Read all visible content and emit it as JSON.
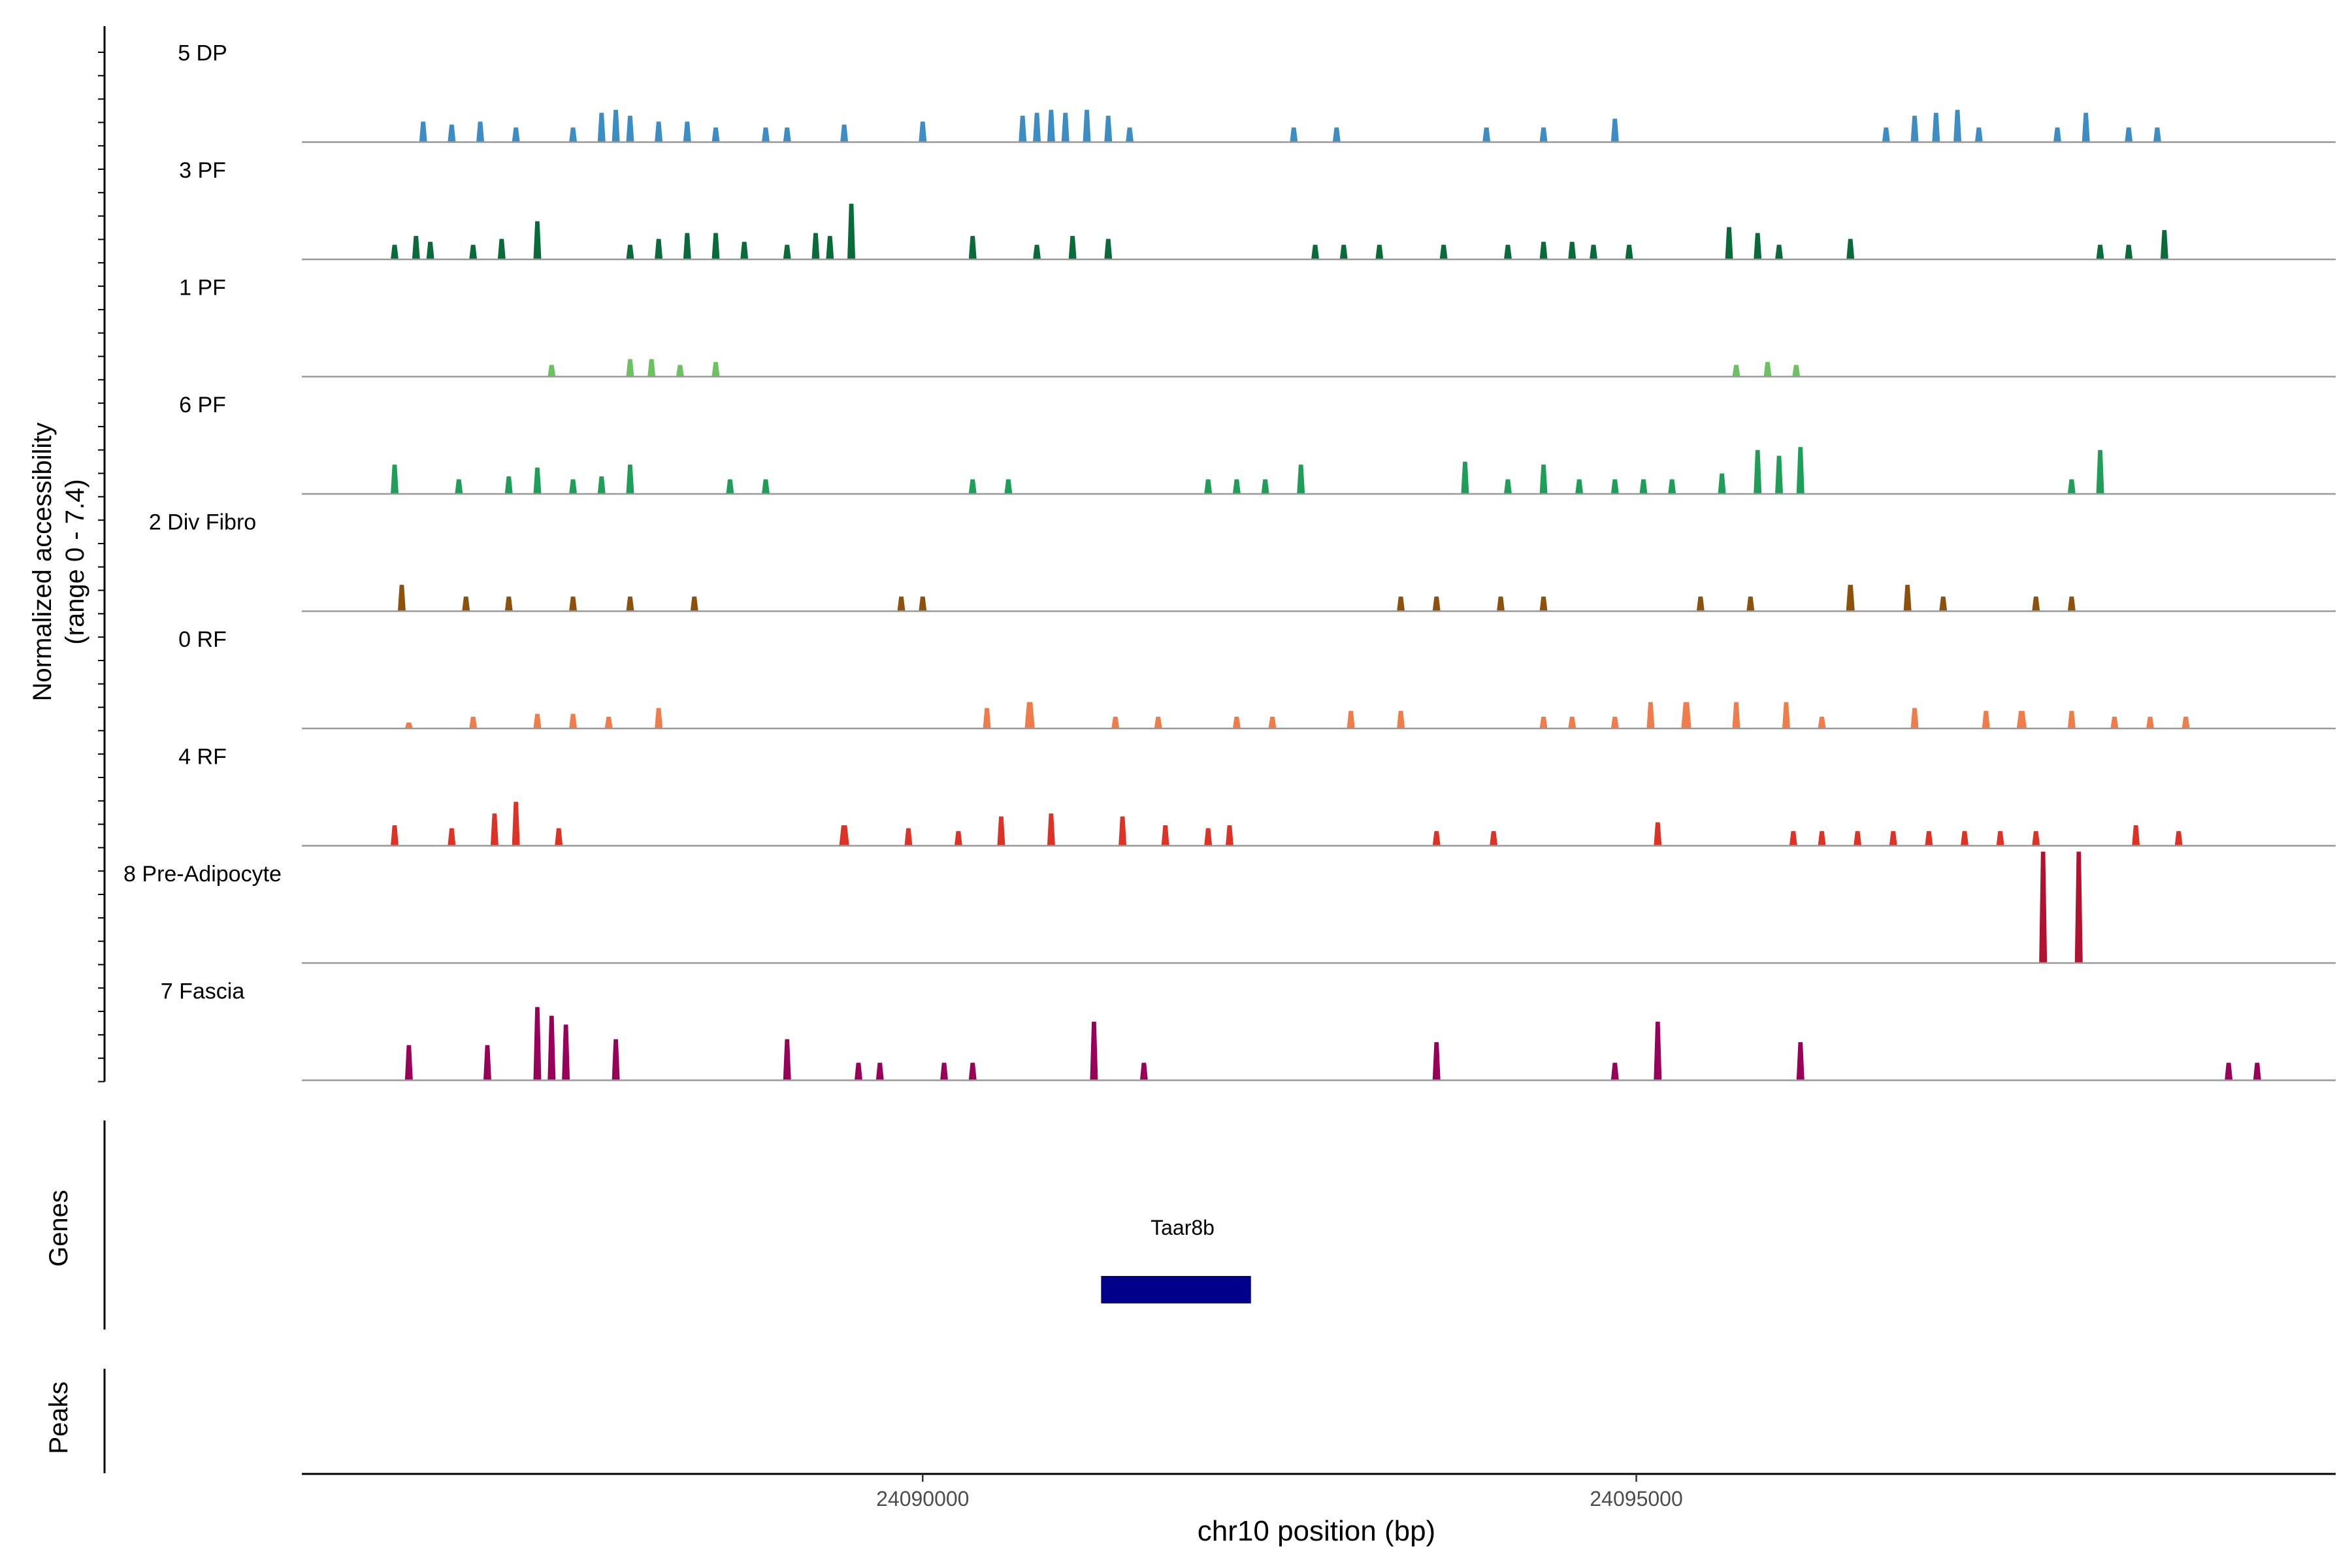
{
  "chart_data": {
    "type": "area",
    "title": "",
    "xlabel": "chr10 position (bp)",
    "ylabel_line1": "Normalized accessibility",
    "ylabel_line2": "(range 0 - 7.4)",
    "ylim": [
      0,
      7.4
    ],
    "xlim": [
      24085650,
      24099900
    ],
    "x_ticks": [
      24090000,
      24095000
    ],
    "x_tick_labels": [
      "24090000",
      "24095000"
    ],
    "tracks": [
      {
        "name": "5 DP",
        "color": "#3C8DC4",
        "peaks": [
          [
            24086500,
            40,
            0.35
          ],
          [
            24086700,
            40,
            0.3
          ],
          [
            24086900,
            55,
            0.35
          ],
          [
            24087150,
            30,
            0.25
          ],
          [
            24087550,
            25,
            0.25
          ],
          [
            24087750,
            30,
            0.5
          ],
          [
            24087850,
            30,
            0.55
          ],
          [
            24087950,
            30,
            0.45
          ],
          [
            24088150,
            30,
            0.35
          ],
          [
            24088350,
            30,
            0.35
          ],
          [
            24088550,
            25,
            0.25
          ],
          [
            24088900,
            25,
            0.25
          ],
          [
            24089050,
            25,
            0.25
          ],
          [
            24089450,
            25,
            0.3
          ],
          [
            24090000,
            25,
            0.35
          ],
          [
            24090700,
            30,
            0.45
          ],
          [
            24090800,
            30,
            0.5
          ],
          [
            24090900,
            30,
            0.55
          ],
          [
            24091000,
            30,
            0.5
          ],
          [
            24091150,
            30,
            0.55
          ],
          [
            24091300,
            25,
            0.45
          ],
          [
            24091450,
            20,
            0.25
          ],
          [
            24092600,
            40,
            0.25
          ],
          [
            24092900,
            30,
            0.25
          ],
          [
            24093950,
            25,
            0.25
          ],
          [
            24094350,
            30,
            0.25
          ],
          [
            24094850,
            40,
            0.4
          ],
          [
            24096750,
            25,
            0.25
          ],
          [
            24096950,
            40,
            0.45
          ],
          [
            24097100,
            35,
            0.5
          ],
          [
            24097250,
            40,
            0.55
          ],
          [
            24097400,
            25,
            0.25
          ],
          [
            24097950,
            30,
            0.25
          ],
          [
            24098150,
            40,
            0.5
          ],
          [
            24098450,
            25,
            0.25
          ],
          [
            24098650,
            25,
            0.25
          ]
        ]
      },
      {
        "name": "3 PF",
        "color": "#0A6B3A",
        "peaks": [
          [
            24086300,
            30,
            0.25
          ],
          [
            24086450,
            30,
            0.4
          ],
          [
            24086550,
            25,
            0.3
          ],
          [
            24086850,
            25,
            0.25
          ],
          [
            24087050,
            30,
            0.35
          ],
          [
            24087300,
            50,
            0.65
          ],
          [
            24087950,
            25,
            0.25
          ],
          [
            24088150,
            30,
            0.35
          ],
          [
            24088350,
            35,
            0.45
          ],
          [
            24088550,
            35,
            0.45
          ],
          [
            24088750,
            25,
            0.3
          ],
          [
            24089050,
            25,
            0.25
          ],
          [
            24089250,
            40,
            0.45
          ],
          [
            24089350,
            35,
            0.4
          ],
          [
            24089500,
            50,
            0.95
          ],
          [
            24090350,
            40,
            0.4
          ],
          [
            24090800,
            25,
            0.25
          ],
          [
            24091050,
            25,
            0.4
          ],
          [
            24091300,
            25,
            0.35
          ],
          [
            24092750,
            25,
            0.25
          ],
          [
            24092950,
            25,
            0.25
          ],
          [
            24093200,
            25,
            0.25
          ],
          [
            24093650,
            25,
            0.25
          ],
          [
            24094100,
            25,
            0.25
          ],
          [
            24094350,
            30,
            0.3
          ],
          [
            24094550,
            30,
            0.3
          ],
          [
            24094700,
            25,
            0.25
          ],
          [
            24094950,
            25,
            0.25
          ],
          [
            24095650,
            50,
            0.55
          ],
          [
            24095850,
            40,
            0.45
          ],
          [
            24096000,
            25,
            0.25
          ],
          [
            24096500,
            30,
            0.35
          ],
          [
            24098250,
            25,
            0.25
          ],
          [
            24098450,
            25,
            0.25
          ],
          [
            24098700,
            40,
            0.5
          ]
        ]
      },
      {
        "name": "1 PF",
        "color": "#6CC163",
        "peaks": [
          [
            24087400,
            25,
            0.2
          ],
          [
            24087950,
            35,
            0.3
          ],
          [
            24088100,
            35,
            0.3
          ],
          [
            24088300,
            25,
            0.2
          ],
          [
            24088550,
            30,
            0.25
          ],
          [
            24095700,
            25,
            0.2
          ],
          [
            24095920,
            30,
            0.25
          ],
          [
            24096120,
            25,
            0.2
          ]
        ]
      },
      {
        "name": "6 PF",
        "color": "#1F9E5A",
        "peaks": [
          [
            24086300,
            35,
            0.5
          ],
          [
            24086750,
            25,
            0.25
          ],
          [
            24087100,
            35,
            0.3
          ],
          [
            24087300,
            35,
            0.45
          ],
          [
            24087550,
            25,
            0.25
          ],
          [
            24087750,
            30,
            0.3
          ],
          [
            24087950,
            40,
            0.5
          ],
          [
            24088650,
            25,
            0.25
          ],
          [
            24088900,
            25,
            0.25
          ],
          [
            24090350,
            25,
            0.25
          ],
          [
            24090600,
            25,
            0.25
          ],
          [
            24092000,
            25,
            0.25
          ],
          [
            24092200,
            25,
            0.25
          ],
          [
            24092400,
            25,
            0.25
          ],
          [
            24092650,
            40,
            0.5
          ],
          [
            24093800,
            40,
            0.55
          ],
          [
            24094100,
            25,
            0.25
          ],
          [
            24094350,
            40,
            0.5
          ],
          [
            24094600,
            25,
            0.25
          ],
          [
            24094850,
            25,
            0.25
          ],
          [
            24095050,
            25,
            0.25
          ],
          [
            24095250,
            25,
            0.25
          ],
          [
            24095600,
            40,
            0.35
          ],
          [
            24095850,
            40,
            0.75
          ],
          [
            24096000,
            35,
            0.65
          ],
          [
            24096150,
            35,
            0.8
          ],
          [
            24098050,
            30,
            0.25
          ],
          [
            24098250,
            45,
            0.75
          ]
        ]
      },
      {
        "name": "2 Div Fibro",
        "color": "#8C510A",
        "peaks": [
          [
            24086350,
            35,
            0.45
          ],
          [
            24086800,
            25,
            0.25
          ],
          [
            24087100,
            25,
            0.25
          ],
          [
            24087550,
            30,
            0.25
          ],
          [
            24087950,
            25,
            0.25
          ],
          [
            24088400,
            45,
            0.25
          ],
          [
            24089850,
            25,
            0.25
          ],
          [
            24090000,
            25,
            0.25
          ],
          [
            24093350,
            25,
            0.25
          ],
          [
            24093600,
            50,
            0.25
          ],
          [
            24094050,
            25,
            0.25
          ],
          [
            24094350,
            25,
            0.25
          ],
          [
            24095450,
            25,
            0.25
          ],
          [
            24095800,
            25,
            0.25
          ],
          [
            24096500,
            60,
            0.45
          ],
          [
            24096900,
            40,
            0.45
          ],
          [
            24097150,
            25,
            0.25
          ],
          [
            24097800,
            25,
            0.25
          ],
          [
            24098050,
            25,
            0.25
          ]
        ]
      },
      {
        "name": "0 RF",
        "color": "#F07D49",
        "peaks": [
          [
            24086400,
            10,
            0.1
          ],
          [
            24086850,
            25,
            0.2
          ],
          [
            24087300,
            40,
            0.25
          ],
          [
            24087550,
            35,
            0.25
          ],
          [
            24087800,
            25,
            0.2
          ],
          [
            24088150,
            35,
            0.35
          ],
          [
            24090450,
            45,
            0.35
          ],
          [
            24090750,
            70,
            0.45
          ],
          [
            24091350,
            25,
            0.2
          ],
          [
            24091650,
            25,
            0.2
          ],
          [
            24092200,
            25,
            0.2
          ],
          [
            24092450,
            30,
            0.2
          ],
          [
            24093000,
            35,
            0.3
          ],
          [
            24093350,
            45,
            0.3
          ],
          [
            24094350,
            25,
            0.2
          ],
          [
            24094550,
            25,
            0.2
          ],
          [
            24094850,
            25,
            0.2
          ],
          [
            24095100,
            50,
            0.45
          ],
          [
            24095350,
            70,
            0.45
          ],
          [
            24095700,
            50,
            0.45
          ],
          [
            24096050,
            40,
            0.45
          ],
          [
            24096300,
            25,
            0.2
          ],
          [
            24096950,
            50,
            0.35
          ],
          [
            24097450,
            30,
            0.3
          ],
          [
            24097700,
            70,
            0.3
          ],
          [
            24098050,
            40,
            0.3
          ],
          [
            24098350,
            25,
            0.2
          ],
          [
            24098600,
            25,
            0.2
          ],
          [
            24098850,
            25,
            0.2
          ]
        ]
      },
      {
        "name": "4 RF",
        "color": "#DD3326",
        "peaks": [
          [
            24086300,
            25,
            0.35
          ],
          [
            24086700,
            35,
            0.3
          ],
          [
            24087000,
            50,
            0.55
          ],
          [
            24087150,
            50,
            0.75
          ],
          [
            24087450,
            30,
            0.3
          ],
          [
            24089450,
            70,
            0.35
          ],
          [
            24089900,
            35,
            0.3
          ],
          [
            24090250,
            35,
            0.25
          ],
          [
            24090550,
            50,
            0.5
          ],
          [
            24090900,
            35,
            0.55
          ],
          [
            24091400,
            50,
            0.5
          ],
          [
            24091700,
            35,
            0.35
          ],
          [
            24092000,
            30,
            0.3
          ],
          [
            24092150,
            35,
            0.35
          ],
          [
            24093600,
            25,
            0.25
          ],
          [
            24094000,
            25,
            0.25
          ],
          [
            24095150,
            30,
            0.4
          ],
          [
            24096100,
            25,
            0.25
          ],
          [
            24096300,
            25,
            0.25
          ],
          [
            24096550,
            25,
            0.25
          ],
          [
            24096800,
            25,
            0.25
          ],
          [
            24097050,
            30,
            0.25
          ],
          [
            24097300,
            30,
            0.25
          ],
          [
            24097550,
            25,
            0.25
          ],
          [
            24097800,
            45,
            0.25
          ],
          [
            24098500,
            50,
            0.35
          ],
          [
            24098800,
            25,
            0.25
          ]
        ]
      },
      {
        "name": "8 Pre-Adipocyte",
        "color": "#B0122F",
        "peaks": [
          [
            24097850,
            30,
            1.9
          ],
          [
            24098100,
            30,
            1.9
          ]
        ]
      },
      {
        "name": "7 Fascia",
        "color": "#99005A",
        "peaks": [
          [
            24086400,
            50,
            0.6
          ],
          [
            24086950,
            45,
            0.6
          ],
          [
            24087300,
            35,
            1.25
          ],
          [
            24087400,
            30,
            1.1
          ],
          [
            24087500,
            40,
            0.95
          ],
          [
            24087850,
            45,
            0.7
          ],
          [
            24089050,
            40,
            0.7
          ],
          [
            24089550,
            25,
            0.3
          ],
          [
            24089700,
            25,
            0.3
          ],
          [
            24090150,
            25,
            0.3
          ],
          [
            24090350,
            25,
            0.3
          ],
          [
            24091200,
            45,
            1.0
          ],
          [
            24091550,
            25,
            0.3
          ],
          [
            24093600,
            45,
            0.65
          ],
          [
            24094850,
            25,
            0.3
          ],
          [
            24095150,
            45,
            1.0
          ],
          [
            24096150,
            35,
            0.65
          ],
          [
            24099150,
            25,
            0.3
          ],
          [
            24099350,
            35,
            0.3
          ]
        ]
      }
    ],
    "genes_label": "Genes",
    "peaks_label": "Peaks",
    "genes": [
      {
        "name": "Taar8b",
        "start": 24091250,
        "end": 24092300,
        "color": "#00008B"
      }
    ]
  }
}
